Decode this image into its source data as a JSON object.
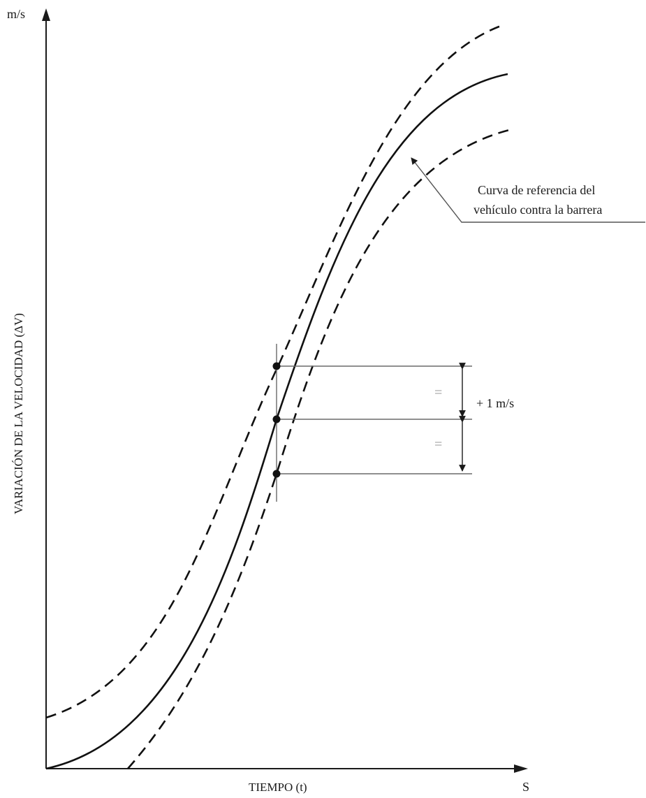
{
  "axes": {
    "y_unit": "m/s",
    "y_label": "VARIACIÓN DE LA VELOCIDAD (ΔV)",
    "x_label": "TIEMPO (t)",
    "x_unit": "S"
  },
  "annotations": {
    "reference_curve_line1": "Curva de referencia del",
    "reference_curve_line2": "vehículo contra la barrera",
    "tolerance": "+ 1 m/s",
    "equal_upper": "=",
    "equal_lower": "="
  },
  "curves": [
    {
      "role": "reference",
      "style": "solid"
    },
    {
      "role": "upper-corridor",
      "style": "dashed"
    },
    {
      "role": "lower-corridor",
      "style": "dashed"
    }
  ]
}
